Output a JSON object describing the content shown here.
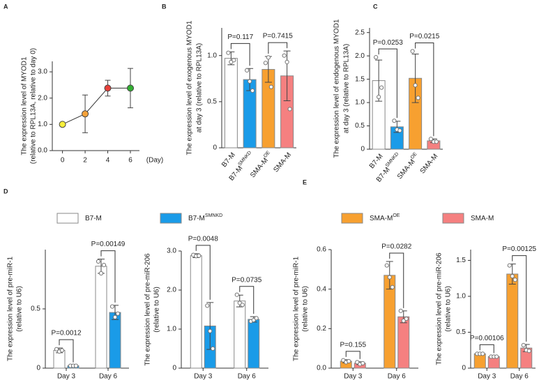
{
  "chart_data": [
    {
      "type": "line",
      "panel": "A",
      "ylabel": [
        "The expression level of MYOD1",
        "(relative to RPL13A, relative to day 0)"
      ],
      "xlabel": "(Day)",
      "x": [
        0,
        2,
        4,
        6
      ],
      "values": [
        1.0,
        1.4,
        2.38,
        2.38
      ],
      "errors": [
        null,
        0.72,
        0.3,
        0.75
      ],
      "colors": [
        "#f7ef3c",
        "#f4a23a",
        "#e8403a",
        "#33b033"
      ],
      "xlim": [
        -0.9,
        6.8
      ],
      "xticks": [
        0,
        2,
        4,
        6
      ],
      "ylim": [
        0,
        3.4
      ],
      "yticks": [
        {
          "value": 0,
          "label": "0.0"
        },
        {
          "value": 1,
          "label": "1.0"
        },
        {
          "value": 2,
          "label": "2.0"
        },
        {
          "value": 3,
          "label": "3.0"
        }
      ]
    },
    {
      "type": "bar",
      "panel": "B",
      "ylabel": [
        "The expression level of exogenous MYOD1",
        "at day 3 (relative to RPL13A)"
      ],
      "categories": [
        {
          "base": "B7-M"
        },
        {
          "base": "B7-M",
          "sup": "SMNKD"
        },
        {
          "base": "SMA-M",
          "sup": "OE"
        },
        {
          "base": "SMA-M"
        }
      ],
      "values": [
        0.97,
        0.74,
        0.85,
        0.78
      ],
      "errors": [
        0.07,
        0.12,
        0.14,
        0.27
      ],
      "points": [
        [
          1.03,
          0.93,
          0.95
        ],
        [
          0.84,
          0.72,
          0.62
        ],
        [
          0.92,
          0.98,
          0.66
        ],
        [
          1.0,
          0.93,
          0.42
        ]
      ],
      "colors": [
        "#ffffff",
        "#1a9be8",
        "#f7a030",
        "#f58080"
      ],
      "ylim": [
        0,
        1.3
      ],
      "yticks": [
        0,
        0.5,
        {
          "value": 1,
          "label": "1.0"
        }
      ],
      "annotations": [
        "P=0.117",
        "P=0.7415"
      ]
    },
    {
      "type": "bar",
      "panel": "C",
      "ylabel": [
        "The expression level of endogenous MYOD1",
        "at day 3 (relative to RPL13A)"
      ],
      "categories": [
        {
          "base": "B7-M"
        },
        {
          "base": "B7-M",
          "sup": "SMNKD"
        },
        {
          "base": "SMA-M",
          "sup": "OE"
        },
        {
          "base": "SMA-M"
        }
      ],
      "values": [
        1.47,
        0.48,
        1.52,
        0.18
      ],
      "errors": [
        0.44,
        0.12,
        0.52,
        0.04
      ],
      "points": [
        [
          1.97,
          1.12,
          1.32
        ],
        [
          0.61,
          0.42,
          0.4
        ],
        [
          2.1,
          1.37,
          1.1
        ],
        [
          0.22,
          0.16,
          0.16
        ]
      ],
      "colors": [
        "#ffffff",
        "#1a9be8",
        "#f7a030",
        "#f58080"
      ],
      "ylim": [
        0,
        2.6
      ],
      "yticks": [
        0,
        0.5,
        {
          "value": 1,
          "label": "1.0"
        },
        1.5,
        {
          "value": 2,
          "label": "2.0"
        },
        2.5
      ],
      "annotations": [
        "P=0.0253",
        "P=0.0215"
      ]
    },
    {
      "type": "bar",
      "panel": "D",
      "ylabel": [
        "The expression level of pre-miR-1",
        "(relative to U6)"
      ],
      "categories": [
        "Day 3",
        "Day 6"
      ],
      "series": [
        {
          "name": {
            "base": "B7-M"
          },
          "color": "#ffffff",
          "values": [
            0.15,
            0.86
          ],
          "errors": [
            0.02,
            0.06
          ],
          "points": [
            [
              0.16,
              0.14,
              0.15
            ],
            [
              0.9,
              0.8,
              0.87
            ]
          ]
        },
        {
          "name": {
            "base": "B7-M",
            "sup": "SMNKD"
          },
          "color": "#1a9be8",
          "values": [
            0.02,
            0.47
          ],
          "errors": [
            0.005,
            0.06
          ],
          "points": [
            [
              0.02,
              0.02,
              0.02
            ],
            [
              0.52,
              0.43,
              0.46
            ]
          ]
        }
      ],
      "ylim": [
        0,
        1.0
      ],
      "yticks": [
        0,
        0.5
      ],
      "annotations": [
        "P=0.0012",
        "P=0.00149"
      ]
    },
    {
      "type": "bar",
      "ylabel": [
        "The expression level of pre-miR-206",
        "(relative to U6)"
      ],
      "categories": [
        "Day 3",
        "Day 6"
      ],
      "series": [
        {
          "color": "#ffffff",
          "values": [
            2.88,
            1.72
          ],
          "errors": [
            0.05,
            0.15
          ],
          "points": [
            [
              2.9,
              2.87,
              2.88
            ],
            [
              1.88,
              1.67,
              1.62
            ]
          ]
        },
        {
          "color": "#1a9be8",
          "values": [
            1.08,
            1.25
          ],
          "errors": [
            0.6,
            0.07
          ],
          "points": [
            [
              1.6,
              0.95,
              0.5
            ],
            [
              1.2,
              1.23,
              1.28
            ]
          ]
        }
      ],
      "ylim": [
        0,
        3.0
      ],
      "yticks": [
        0,
        {
          "value": 1,
          "label": "1.0"
        },
        {
          "value": 2,
          "label": "2.0"
        },
        {
          "value": 3,
          "label": "3.0"
        }
      ],
      "annotations": [
        "P=0.0048",
        "P=0.0735"
      ]
    },
    {
      "type": "bar",
      "panel": "E",
      "ylabel": [
        "The expression level of pre-miR-1",
        "(relative to U6)"
      ],
      "categories": [
        "Day 3",
        "Day 6"
      ],
      "series": [
        {
          "name": {
            "base": "SMA-M",
            "sup": "OE"
          },
          "color": "#f7a030",
          "values": [
            0.035,
            0.47
          ],
          "errors": [
            0.008,
            0.07
          ],
          "points": [
            [
              0.04,
              0.03,
              0.035
            ],
            [
              0.52,
              0.46,
              0.41
            ]
          ]
        },
        {
          "name": {
            "base": "SMA-M"
          },
          "color": "#f58080",
          "values": [
            0.025,
            0.26
          ],
          "errors": [
            0.007,
            0.03
          ],
          "points": [
            [
              0.03,
              0.02,
              0.025
            ],
            [
              0.29,
              0.24,
              0.25
            ]
          ]
        }
      ],
      "ylim": [
        0,
        0.6
      ],
      "yticks": [
        {
          "value": 0,
          "label": "0.0"
        },
        {
          "value": 0.2,
          "label": "0.2"
        },
        {
          "value": 0.4,
          "label": "0.4"
        },
        {
          "value": 0.6,
          "label": "0.6"
        }
      ],
      "annotations": [
        "P=0.155",
        "P=0.0282"
      ]
    },
    {
      "type": "bar",
      "ylabel": [
        "The expression level of pre-miR-206",
        "(relative to U6)"
      ],
      "categories": [
        "Day 3",
        "Day 6"
      ],
      "series": [
        {
          "color": "#f7a030",
          "values": [
            0.2,
            1.31
          ],
          "errors": [
            0.01,
            0.14
          ],
          "points": [
            [
              0.2,
              0.2,
              0.2
            ],
            [
              1.43,
              1.28,
              1.23
            ]
          ]
        },
        {
          "color": "#f58080",
          "values": [
            0.16,
            0.28
          ],
          "errors": [
            0.01,
            0.05
          ],
          "points": [
            [
              0.16,
              0.16,
              0.16
            ],
            [
              0.32,
              0.25,
              0.24
            ]
          ]
        }
      ],
      "ylim": [
        0,
        1.65
      ],
      "yticks": [
        0,
        0.5,
        {
          "value": 1,
          "label": "1.0"
        },
        1.5
      ],
      "annotations": [
        "P=0.00106",
        "P=0.00125"
      ]
    }
  ]
}
